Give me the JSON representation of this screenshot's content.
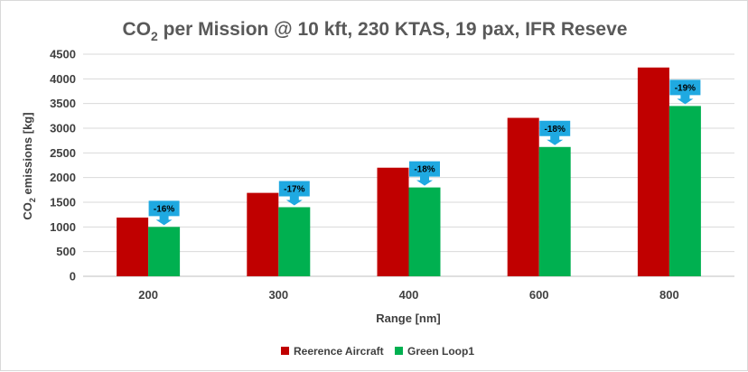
{
  "chart_data": {
    "type": "bar",
    "title": {
      "prefix": "CO",
      "subscript": "2",
      "suffix": " per Mission @ 10 kft, 230 KTAS, 19 pax, IFR Reseve"
    },
    "xlabel": "Range [nm]",
    "ylabel": {
      "prefix": "CO",
      "subscript": "2",
      "suffix": " emissions [kg]"
    },
    "categories": [
      "200",
      "300",
      "400",
      "600",
      "800"
    ],
    "ylim": [
      0,
      4500
    ],
    "yticks": [
      0,
      500,
      1000,
      1500,
      2000,
      2500,
      3000,
      3500,
      4000,
      4500
    ],
    "grid": true,
    "legend_position": "bottom",
    "series": [
      {
        "name": "Reerence Aircraft",
        "color": "#c00000",
        "values": [
          1190,
          1690,
          2200,
          3210,
          4230
        ]
      },
      {
        "name": "Green Loop1",
        "color": "#00b050",
        "values": [
          1000,
          1400,
          1800,
          2620,
          3450
        ]
      }
    ],
    "annotations": [
      "-16%",
      "-17%",
      "-18%",
      "-18%",
      "-19%"
    ],
    "annotation_color": "#1fa9e1"
  }
}
